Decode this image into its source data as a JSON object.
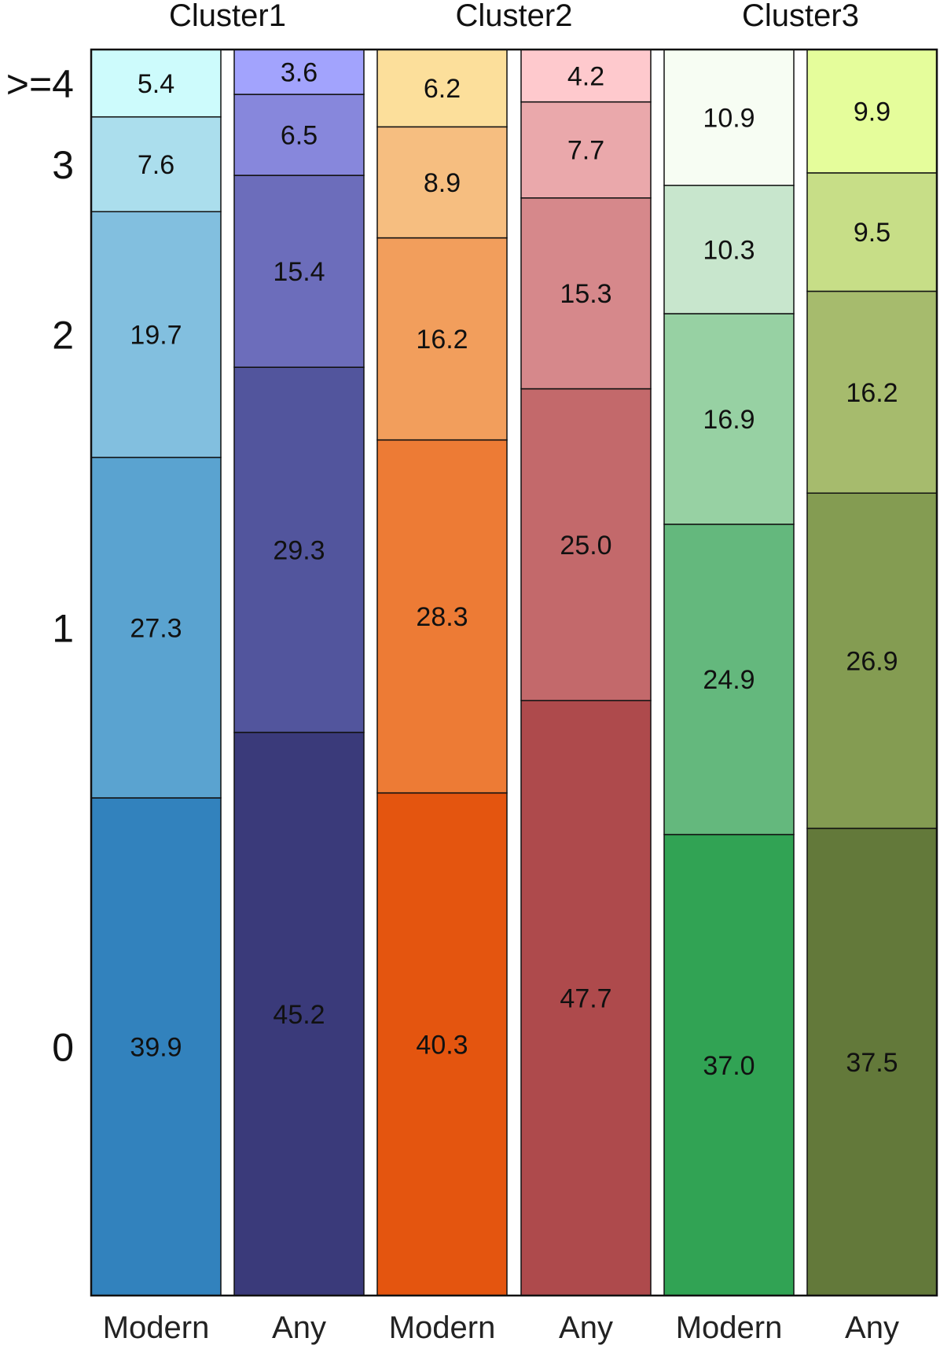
{
  "chart_data": {
    "type": "bar",
    "stacked": true,
    "groups": [
      {
        "title": "Cluster1",
        "bars": [
          {
            "category": "Modern",
            "values": [
              39.9,
              27.3,
              19.7,
              7.6,
              5.4
            ],
            "colors": [
              "#3282bd",
              "#5aa3d0",
              "#82bfdf",
              "#abdeed",
              "#cdfbfc"
            ]
          },
          {
            "category": "Any",
            "values": [
              45.2,
              29.3,
              15.4,
              6.5,
              3.6
            ],
            "colors": [
              "#3a3a7a",
              "#52559d",
              "#6c6dbb",
              "#8787dc",
              "#a2a3fd"
            ]
          }
        ]
      },
      {
        "title": "Cluster2",
        "bars": [
          {
            "category": "Modern",
            "values": [
              40.3,
              28.3,
              16.2,
              8.9,
              6.2
            ],
            "colors": [
              "#e4550f",
              "#ed7b35",
              "#f29e5c",
              "#f6be80",
              "#fcdf9b"
            ]
          },
          {
            "category": "Any",
            "values": [
              47.7,
              25.0,
              15.3,
              7.7,
              4.2
            ],
            "colors": [
              "#ae4a4c",
              "#c3696b",
              "#d6888b",
              "#eaa8ab",
              "#fec9cd"
            ]
          }
        ]
      },
      {
        "title": "Cluster3",
        "bars": [
          {
            "category": "Modern",
            "values": [
              37.0,
              24.9,
              16.9,
              10.3,
              10.9
            ],
            "colors": [
              "#31a354",
              "#64b87d",
              "#97d1a3",
              "#c8e6cd",
              "#f7fdf3"
            ]
          },
          {
            "category": "Any",
            "values": [
              37.5,
              26.9,
              16.2,
              9.5,
              9.9
            ],
            "colors": [
              "#63793a",
              "#849c52",
              "#a6bb6d",
              "#c7de87",
              "#e5fd9b"
            ]
          }
        ]
      }
    ],
    "levels": [
      "0",
      "1",
      "2",
      "3",
      ">=4"
    ],
    "ylim": [
      0,
      100
    ]
  }
}
